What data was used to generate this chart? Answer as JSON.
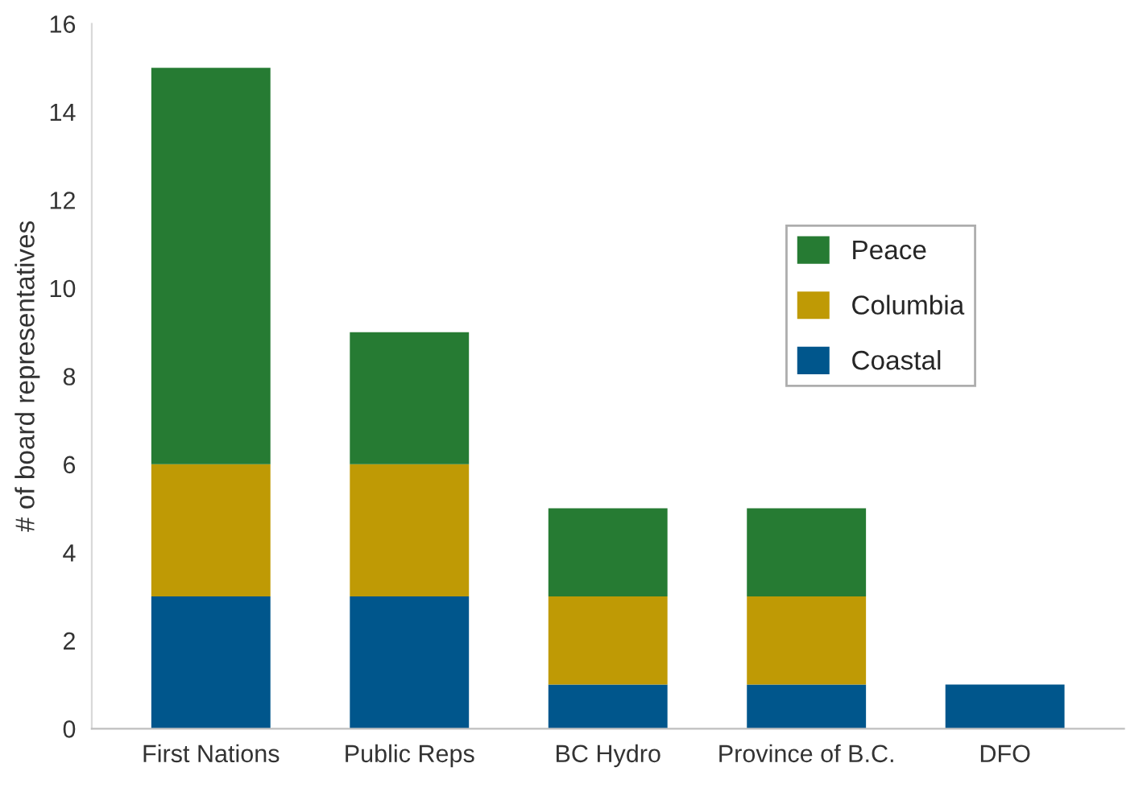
{
  "chart_data": {
    "type": "bar",
    "stacked": true,
    "ylabel": "# of board representatives",
    "categories": [
      "First Nations",
      "Public Reps",
      "BC Hydro",
      "Province of B.C.",
      "DFO"
    ],
    "series": [
      {
        "name": "Coastal",
        "color": "#00568c",
        "values": [
          3,
          3,
          1,
          1,
          1
        ]
      },
      {
        "name": "Columbia",
        "color": "#bf9a05",
        "values": [
          3,
          3,
          2,
          2,
          0
        ]
      },
      {
        "name": "Peace",
        "color": "#267b33",
        "values": [
          9,
          3,
          2,
          2,
          0
        ]
      }
    ],
    "ylim": [
      0,
      16
    ],
    "yticks": [
      0,
      2,
      4,
      6,
      8,
      10,
      12,
      14,
      16
    ],
    "grid": false,
    "legend": "right"
  }
}
